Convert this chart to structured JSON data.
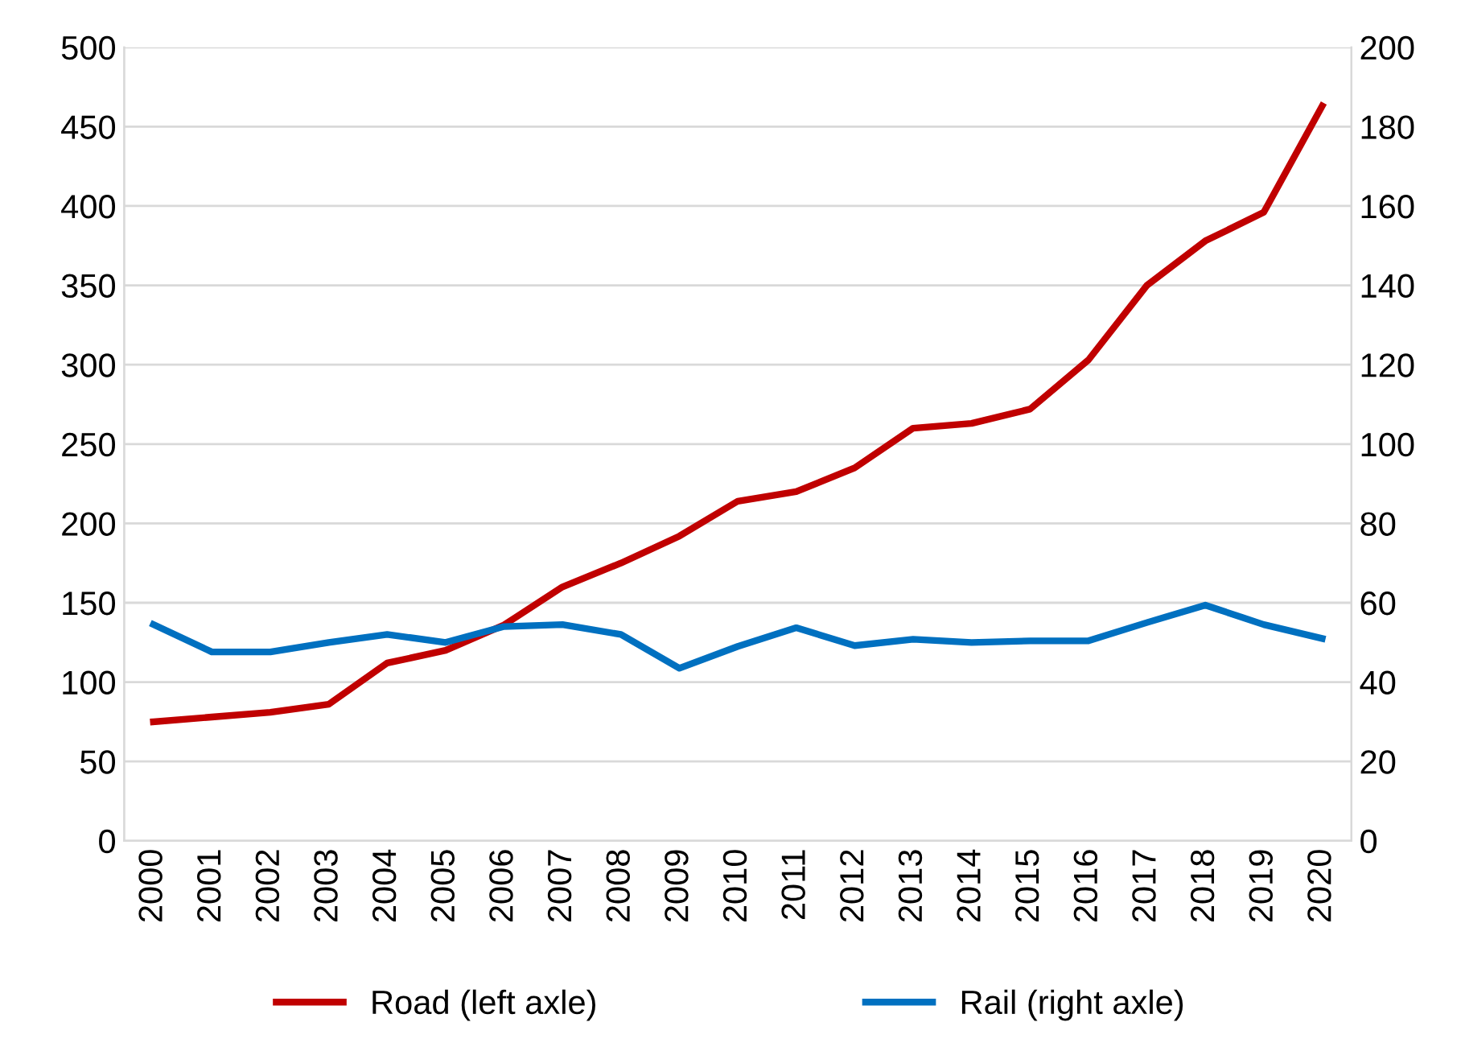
{
  "chart_data": {
    "type": "line",
    "categories": [
      "2000",
      "2001",
      "2002",
      "2003",
      "2004",
      "2005",
      "2006",
      "2007",
      "2008",
      "2009",
      "2010",
      "2011",
      "2012",
      "2013",
      "2014",
      "2015",
      "2016",
      "2017",
      "2018",
      "2019",
      "2020"
    ],
    "series": [
      {
        "name": "Road (left axle)",
        "color": "#c00000",
        "values": [
          75,
          78,
          81,
          86,
          112,
          120,
          136,
          160,
          175,
          192,
          214,
          220,
          235,
          260,
          263,
          272,
          303,
          350,
          378,
          396,
          463
        ]
      },
      {
        "name": "Rail (right axle)",
        "color": "#0070c0",
        "axis": "y2",
        "values": [
          54.5,
          47.6,
          47.6,
          50,
          52,
          50,
          54,
          54.5,
          52,
          43.5,
          49,
          53.7,
          49.2,
          50.8,
          50,
          50.4,
          50.4,
          55,
          59.4,
          54.5,
          51
        ]
      }
    ],
    "ylim": [
      0,
      500
    ],
    "yticks": [
      0,
      50,
      100,
      150,
      200,
      250,
      300,
      350,
      400,
      450,
      500
    ],
    "y2lim": [
      0,
      200
    ],
    "y2ticks": [
      0,
      20,
      40,
      60,
      80,
      100,
      120,
      140,
      160,
      180,
      200
    ],
    "grid": "y",
    "legend": "bottom",
    "marker": "none",
    "line_style": "solid"
  }
}
